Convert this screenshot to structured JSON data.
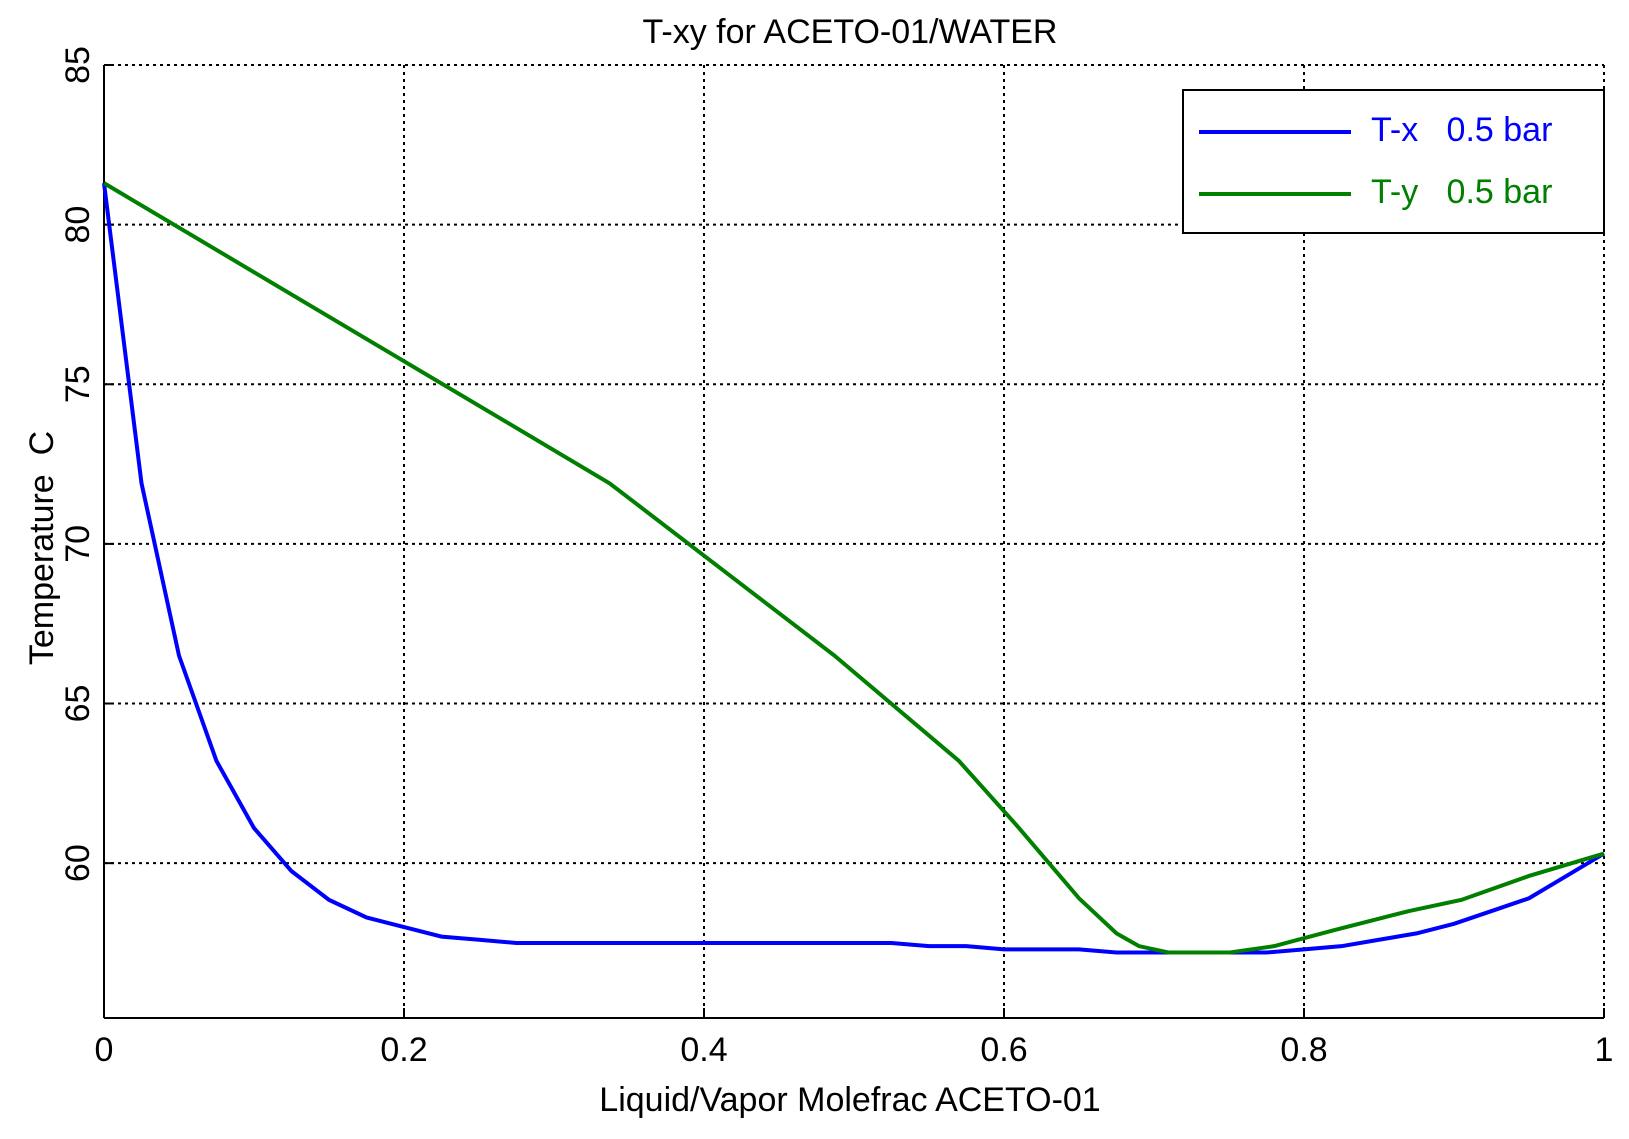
{
  "chart_data": {
    "type": "line",
    "title": "T-xy for ACETO-01/WATER",
    "x_label": "Liquid/Vapor Molefrac ACETO-01",
    "y_label": "Temperature  C",
    "xlim": [
      0,
      1
    ],
    "xticks": [
      0,
      0.2,
      0.4,
      0.6,
      0.8,
      1
    ],
    "ylim": [
      55.15,
      85
    ],
    "yticks": [
      60,
      65,
      70,
      75,
      80,
      85
    ],
    "grid": true,
    "legend": "upper right",
    "series": [
      {
        "name": "T-x   0.5 bar",
        "color": "#0000ff",
        "x": [
          0,
          0.025,
          0.05,
          0.075,
          0.1,
          0.125,
          0.15,
          0.175,
          0.2,
          0.225,
          0.25,
          0.275,
          0.3,
          0.325,
          0.35,
          0.375,
          0.4,
          0.425,
          0.45,
          0.475,
          0.5,
          0.525,
          0.55,
          0.575,
          0.6,
          0.625,
          0.65,
          0.675,
          0.7,
          0.725,
          0.75,
          0.775,
          0.8,
          0.825,
          0.85,
          0.875,
          0.9,
          0.925,
          0.95,
          0.975,
          1
        ],
        "values": [
          81.3,
          71.9,
          66.5,
          63.2,
          61.1,
          59.75,
          58.85,
          58.3,
          58.0,
          57.7,
          57.6,
          57.5,
          57.5,
          57.5,
          57.5,
          57.5,
          57.5,
          57.5,
          57.5,
          57.5,
          57.5,
          57.5,
          57.4,
          57.4,
          57.3,
          57.3,
          57.3,
          57.2,
          57.2,
          57.2,
          57.2,
          57.2,
          57.3,
          57.4,
          57.6,
          57.8,
          58.1,
          58.5,
          58.9,
          59.6,
          60.3
        ]
      },
      {
        "name": "T-y   0.5 bar",
        "color": "#007f00",
        "x": [
          0,
          0.337,
          0.487,
          0.57,
          0.61,
          0.65,
          0.675,
          0.69,
          0.71,
          0.75,
          0.78,
          0.82,
          0.87,
          0.905,
          0.95,
          1
        ],
        "values": [
          81.3,
          71.9,
          66.5,
          63.2,
          61.1,
          58.9,
          57.8,
          57.4,
          57.2,
          57.2,
          57.4,
          57.9,
          58.5,
          58.85,
          59.6,
          60.3
        ]
      }
    ]
  }
}
